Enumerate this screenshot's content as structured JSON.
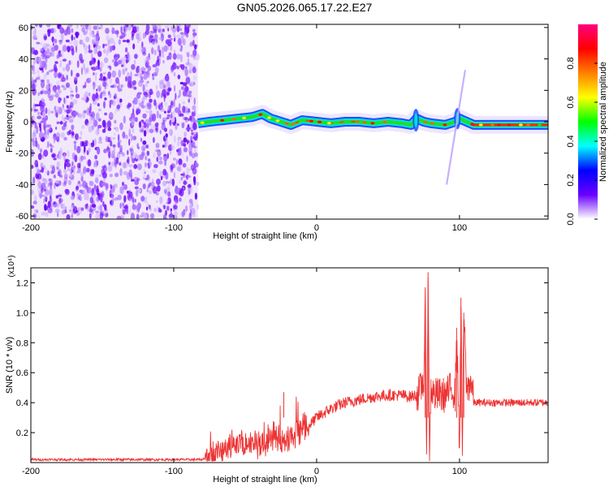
{
  "title": "GN05.2026.065.17.22.E27",
  "chart_data": [
    {
      "type": "heatmap",
      "title": "GN05.2026.065.17.22.E27",
      "xlabel": "Height of straight line (km)",
      "ylabel": "Frequency (Hz)",
      "xlim": [
        -200,
        162
      ],
      "ylim": [
        -62,
        62
      ],
      "xticks": [
        -200,
        -100,
        0,
        100
      ],
      "xtick_labels": [
        "-200",
        "-100",
        "0",
        "100"
      ],
      "yticks": [
        -60,
        -40,
        -20,
        0,
        20,
        40,
        60
      ],
      "ytick_labels": [
        "-60",
        "-40",
        "-20",
        "0",
        "20",
        "40",
        "60"
      ],
      "colorbar": {
        "label": "Normalized spectral amplitude",
        "range": [
          0,
          1
        ],
        "ticks": [
          0,
          0.2,
          0.4,
          0.6,
          0.8
        ],
        "tick_labels": [
          "0.0",
          "0.2",
          "0.4",
          "0.6",
          "0.8"
        ],
        "colors": [
          "#ffffff",
          "#6a00ff",
          "#0000ff",
          "#00ffff",
          "#00ff00",
          "#ffff00",
          "#ff8000",
          "#ff0000",
          "#ff0080"
        ]
      },
      "noise_region_x": [
        -200,
        -83
      ],
      "signal_track": {
        "x": [
          -83,
          -75,
          -65,
          -55,
          -45,
          -38,
          -32,
          -25,
          -18,
          -10,
          0,
          10,
          20,
          30,
          40,
          50,
          60,
          66,
          70,
          75,
          80,
          90,
          97,
          100,
          110,
          130,
          162
        ],
        "y": [
          -1,
          0,
          1,
          2,
          3,
          5,
          2,
          0,
          -2,
          1,
          0,
          -1,
          0,
          0,
          -1,
          0,
          -1,
          -2,
          2,
          0,
          -1,
          -2,
          0,
          2,
          -2,
          -2,
          -2
        ],
        "amplitude": [
          0.45,
          0.55,
          0.5,
          0.55,
          0.6,
          0.65,
          0.6,
          0.7,
          0.75,
          0.8,
          0.85,
          0.8,
          0.75,
          0.7,
          0.7,
          0.7,
          0.7,
          0.6,
          0.5,
          0.65,
          0.7,
          0.65,
          0.6,
          0.7,
          0.9,
          0.95,
          0.95
        ]
      }
    },
    {
      "type": "line",
      "xlabel": "Height of straight line (km)",
      "ylabel": "SNR (10 * v/v)",
      "y_multiplier_label": "(x10⁴)",
      "xlim": [
        -200,
        162
      ],
      "ylim": [
        0,
        1.3
      ],
      "xticks": [
        -200,
        -100,
        0,
        100
      ],
      "xtick_labels": [
        "-200",
        "-100",
        "0",
        "100"
      ],
      "yticks": [
        0.2,
        0.4,
        0.6,
        0.8,
        1.0,
        1.2
      ],
      "ytick_labels": [
        "0.2",
        "0.4",
        "0.6",
        "0.8",
        "1.0",
        "1.2"
      ],
      "series": [
        {
          "name": "SNR",
          "color": "#ee3333",
          "x": [
            -200,
            -150,
            -100,
            -80,
            -75,
            -70,
            -60,
            -55,
            -50,
            -45,
            -40,
            -30,
            -25,
            -20,
            -15,
            -10,
            -5,
            0,
            5,
            10,
            20,
            30,
            40,
            50,
            60,
            65,
            70,
            72,
            75,
            76,
            77,
            78,
            79,
            80,
            82,
            85,
            90,
            95,
            97,
            98,
            100,
            101,
            102,
            103,
            105,
            108,
            110,
            115,
            125,
            140,
            162
          ],
          "y": [
            0.02,
            0.02,
            0.02,
            0.02,
            0.05,
            0.07,
            0.1,
            0.12,
            0.13,
            0.14,
            0.12,
            0.16,
            0.15,
            0.12,
            0.2,
            0.2,
            0.25,
            0.3,
            0.33,
            0.36,
            0.4,
            0.42,
            0.44,
            0.45,
            0.45,
            0.44,
            0.45,
            0.47,
            0.55,
            1.05,
            0.1,
            1.27,
            0.05,
            0.5,
            0.45,
            0.45,
            0.45,
            0.5,
            0.45,
            0.9,
            0.1,
            1.1,
            0.05,
            1.0,
            0.48,
            0.55,
            0.4,
            0.4,
            0.4,
            0.4,
            0.4
          ]
        }
      ]
    }
  ]
}
